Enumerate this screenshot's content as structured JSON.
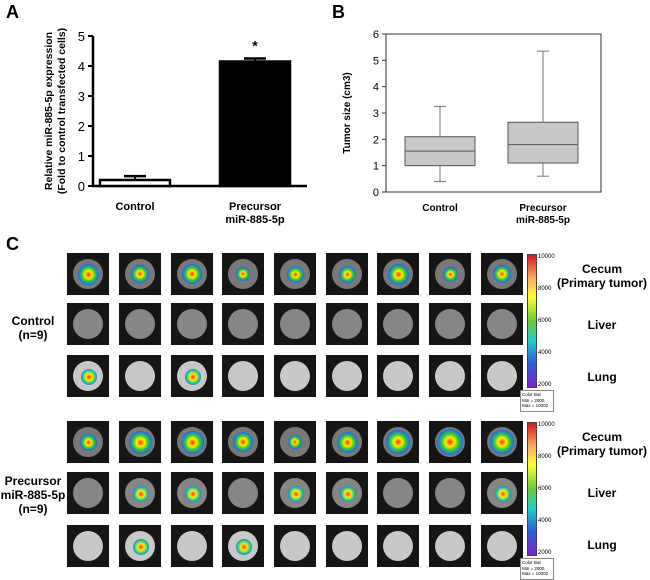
{
  "panel_labels": {
    "a": "A",
    "b": "B",
    "c": "C"
  },
  "chart_data": [
    {
      "type": "bar",
      "categories": [
        "Control",
        "Precursor\nmiR-885-5p"
      ],
      "values": [
        0.2,
        4.15
      ],
      "errors": [
        0.13,
        0.1
      ],
      "ylabel_line1": "Relative miR-885-5p expression",
      "ylabel_line2": "(Fold to control transfected cells)",
      "ylim": [
        0,
        5
      ],
      "yticks": [
        0,
        1,
        2,
        3,
        4,
        5
      ],
      "annotation": "*",
      "bar_color": "#000000"
    },
    {
      "type": "box",
      "categories": [
        "Control",
        "Precursor\nmiR-885-5p"
      ],
      "boxes": [
        {
          "min": 0.4,
          "q1": 1.0,
          "median": 1.55,
          "q3": 2.1,
          "max": 3.25
        },
        {
          "min": 0.6,
          "q1": 1.1,
          "median": 1.8,
          "q3": 2.65,
          "max": 5.35
        }
      ],
      "ylabel": "Tumor size (cm3)",
      "ylim": [
        0,
        6
      ],
      "yticks": [
        0,
        1,
        2,
        3,
        4,
        5,
        6
      ],
      "box_color": "#c8c8c8"
    }
  ],
  "panel_c": {
    "groups": [
      {
        "label_lines": [
          "Control",
          "(n=9)"
        ]
      },
      {
        "label_lines": [
          "Precursor",
          "miR-885-5p",
          "(n=9)"
        ]
      }
    ],
    "organs": [
      {
        "label_lines": [
          "Cecum",
          "(Primary tumor)"
        ]
      },
      {
        "label_lines": [
          "Liver"
        ]
      },
      {
        "label_lines": [
          "Lung"
        ]
      }
    ],
    "colorbar": {
      "ticks": [
        "10000",
        "8000",
        "6000",
        "4000",
        "2000"
      ],
      "box_lines": [
        "Color Bar",
        "Min = 2000",
        "Max = 10000"
      ]
    }
  }
}
